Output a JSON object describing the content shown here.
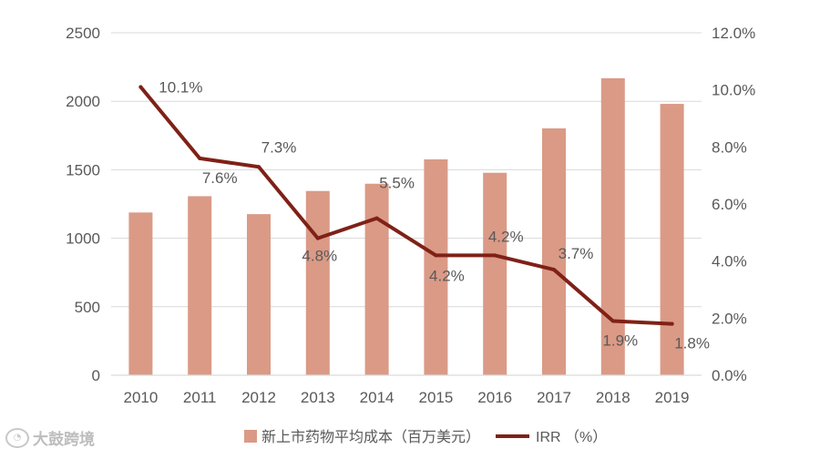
{
  "chart_data": {
    "type": "bar",
    "categories": [
      "2010",
      "2011",
      "2012",
      "2013",
      "2014",
      "2015",
      "2016",
      "2017",
      "2018",
      "2019"
    ],
    "series": [
      {
        "name": "新上市药物平均成本（百万美元）",
        "type": "bar",
        "axis": "left",
        "color": "#DA9A86",
        "values": [
          1188,
          1307,
          1176,
          1345,
          1398,
          1576,
          1478,
          1802,
          2168,
          1981
        ]
      },
      {
        "name": "IRR （%）",
        "type": "line",
        "axis": "right",
        "color": "#7F2117",
        "values": [
          10.1,
          7.6,
          7.3,
          4.8,
          5.5,
          4.2,
          4.2,
          3.7,
          1.9,
          1.8
        ],
        "labels": [
          "10.1%",
          "7.6%",
          "7.3%",
          "4.8%",
          "5.5%",
          "4.2%",
          "4.2%",
          "3.7%",
          "1.9%",
          "1.8%"
        ]
      }
    ],
    "y_left": {
      "min": 0,
      "max": 2500,
      "ticks": [
        "0",
        "500",
        "1000",
        "1500",
        "2000",
        "2500"
      ]
    },
    "y_right": {
      "min": 0,
      "max": 12,
      "ticks": [
        "0.0%",
        "2.0%",
        "4.0%",
        "6.0%",
        "8.0%",
        "10.0%",
        "12.0%"
      ]
    },
    "grid": true,
    "legend": "bottom"
  },
  "legend": {
    "bar_label": "新上市药物平均成本（百万美元）",
    "line_label": "IRR （%）"
  },
  "watermark": {
    "text": "大鼓跨境"
  }
}
